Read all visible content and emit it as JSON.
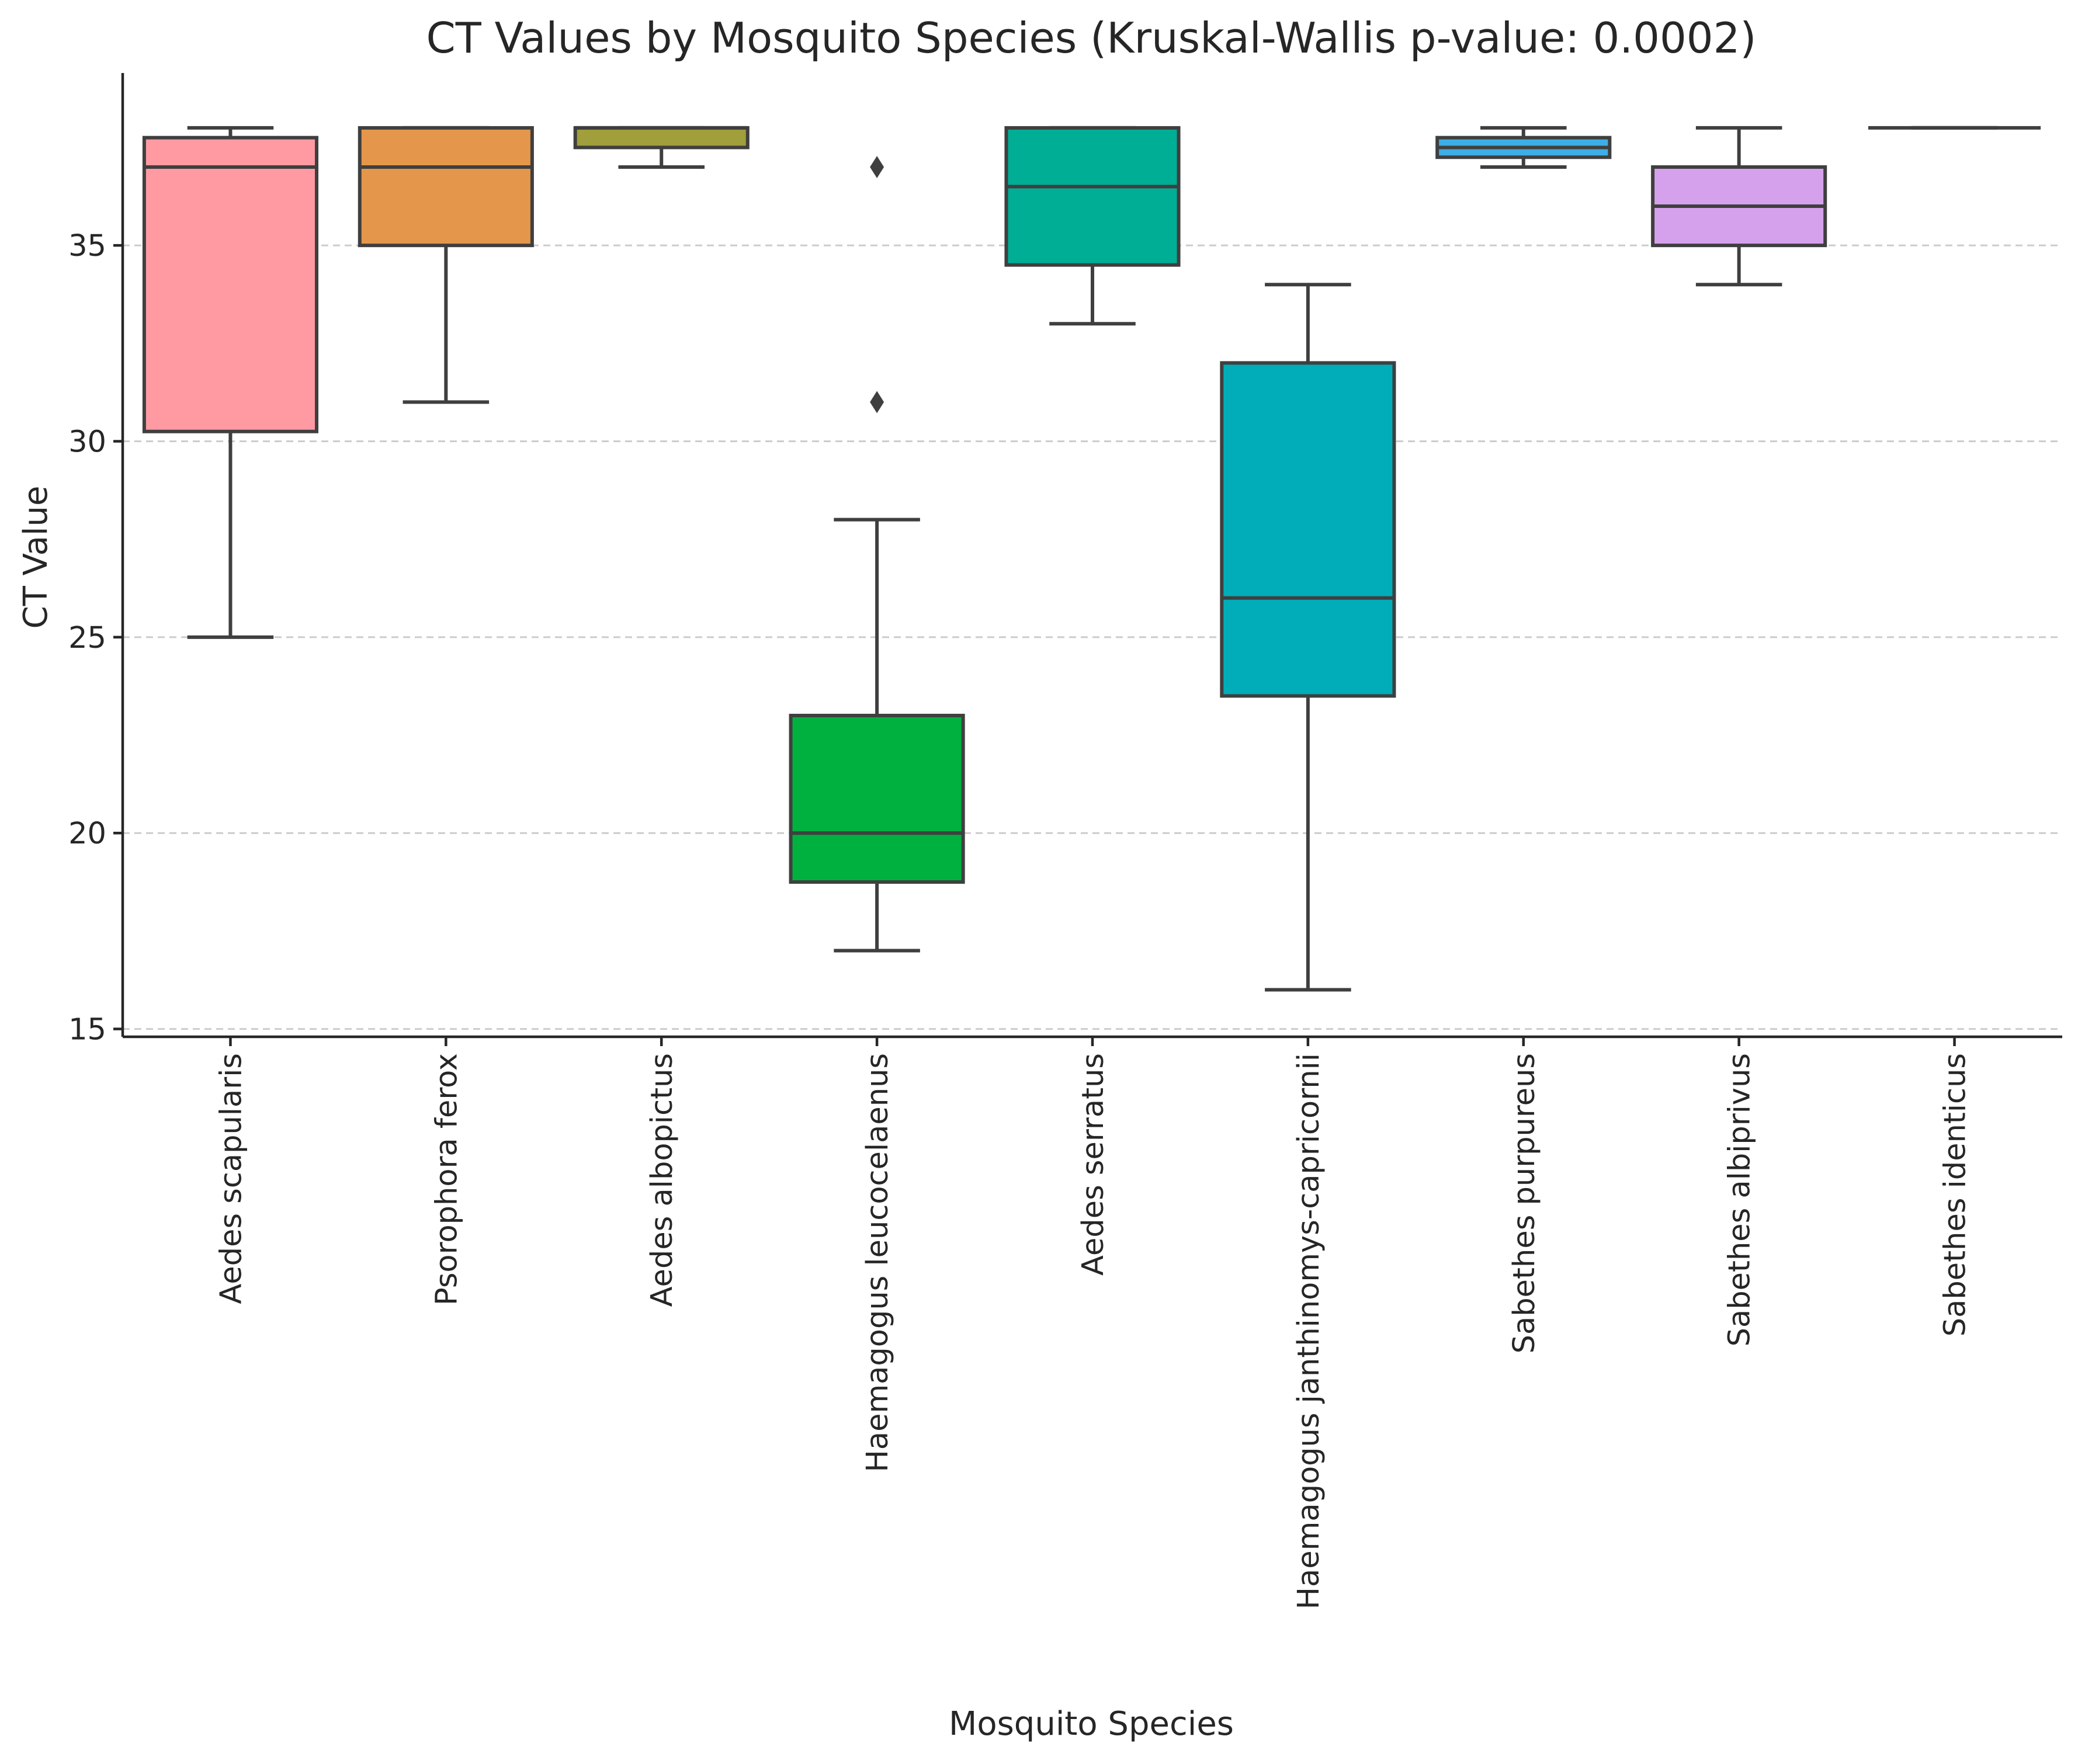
{
  "chart_data": {
    "type": "box",
    "title": "CT Values by Mosquito Species (Kruskal-Wallis p-value: 0.0002)",
    "xlabel": "Mosquito Species",
    "ylabel": "CT Value",
    "ylim": [
      14.8,
      39.4
    ],
    "yticks": [
      15,
      20,
      25,
      30,
      35
    ],
    "grid": "y-dashed",
    "categories": [
      "Aedes scapularis",
      "Psorophora ferox",
      "Aedes albopictus",
      "Haemagogus leucocelaenus",
      "Aedes serratus",
      "Haemagogus janthinomys-capricornii",
      "Sabethes purpureus",
      "Sabethes albiprivus",
      "Sabethes identicus"
    ],
    "boxes": [
      {
        "whislo": 25.0,
        "q1": 30.25,
        "med": 37.0,
        "q3": 37.75,
        "whishi": 38.0,
        "fliers": [],
        "color": "#ff9aa2"
      },
      {
        "whislo": 31.0,
        "q1": 35.0,
        "med": 37.0,
        "q3": 38.0,
        "whishi": 38.0,
        "fliers": [],
        "color": "#e4974b"
      },
      {
        "whislo": 37.0,
        "q1": 37.5,
        "med": 38.0,
        "q3": 38.0,
        "whishi": 38.0,
        "fliers": [],
        "color": "#a19e3c"
      },
      {
        "whislo": 17.0,
        "q1": 18.75,
        "med": 20.0,
        "q3": 23.0,
        "whishi": 28.0,
        "fliers": [
          31.0,
          37.0
        ],
        "color": "#00b140"
      },
      {
        "whislo": 33.0,
        "q1": 34.5,
        "med": 36.5,
        "q3": 38.0,
        "whishi": 38.0,
        "fliers": [],
        "color": "#00ad95"
      },
      {
        "whislo": 16.0,
        "q1": 23.5,
        "med": 26.0,
        "q3": 32.0,
        "whishi": 34.0,
        "fliers": [],
        "color": "#00adb8"
      },
      {
        "whislo": 37.0,
        "q1": 37.25,
        "med": 37.5,
        "q3": 37.75,
        "whishi": 38.0,
        "fliers": [],
        "color": "#3eaee6"
      },
      {
        "whislo": 34.0,
        "q1": 35.0,
        "med": 36.0,
        "q3": 37.0,
        "whishi": 38.0,
        "fliers": [],
        "color": "#d6a1ec"
      },
      {
        "whislo": 38.0,
        "q1": 38.0,
        "med": 38.0,
        "q3": 38.0,
        "whishi": 38.0,
        "fliers": [],
        "color": "#f5a0c8"
      }
    ]
  }
}
